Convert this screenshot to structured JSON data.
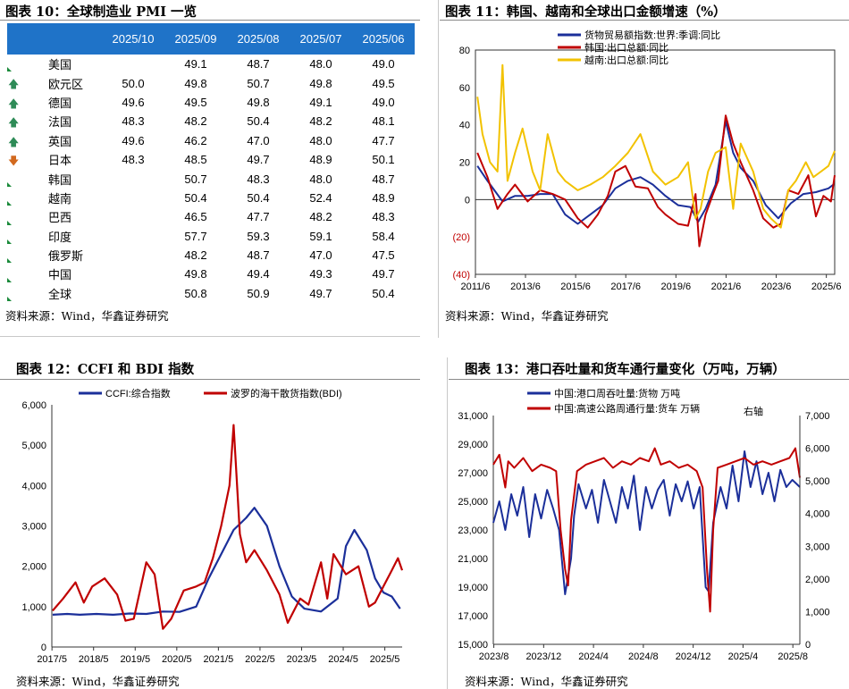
{
  "pmi": {
    "title": "图表 10：全球制造业 PMI 一览",
    "source": "资料来源：Wind，华鑫证券研究",
    "headers": [
      "2025/10",
      "2025/09",
      "2025/08",
      "2025/07",
      "2025/06"
    ],
    "rows": [
      {
        "icon": "flag",
        "name": "美国",
        "v": [
          "",
          "49.1",
          "48.7",
          "48.0",
          "49.0"
        ]
      },
      {
        "icon": "up",
        "name": "欧元区",
        "v": [
          "50.0",
          "49.8",
          "50.7",
          "49.8",
          "49.5"
        ]
      },
      {
        "icon": "up",
        "name": "德国",
        "v": [
          "49.6",
          "49.5",
          "49.8",
          "49.1",
          "49.0"
        ]
      },
      {
        "icon": "up",
        "name": "法国",
        "v": [
          "48.3",
          "48.2",
          "50.4",
          "48.2",
          "48.1"
        ]
      },
      {
        "icon": "up",
        "name": "英国",
        "v": [
          "49.6",
          "46.2",
          "47.0",
          "48.0",
          "47.7"
        ]
      },
      {
        "icon": "down",
        "name": "日本",
        "v": [
          "48.3",
          "48.5",
          "49.7",
          "48.9",
          "50.1"
        ]
      },
      {
        "icon": "flag",
        "name": "韩国",
        "v": [
          "",
          "50.7",
          "48.3",
          "48.0",
          "48.7"
        ]
      },
      {
        "icon": "flag",
        "name": "越南",
        "v": [
          "",
          "50.4",
          "50.4",
          "52.4",
          "48.9"
        ]
      },
      {
        "icon": "flag",
        "name": "巴西",
        "v": [
          "",
          "46.5",
          "47.7",
          "48.2",
          "48.3"
        ]
      },
      {
        "icon": "flag",
        "name": "印度",
        "v": [
          "",
          "57.7",
          "59.3",
          "59.1",
          "58.4"
        ]
      },
      {
        "icon": "flag",
        "name": "俄罗斯",
        "v": [
          "",
          "48.2",
          "48.7",
          "47.0",
          "47.5"
        ]
      },
      {
        "icon": "flag",
        "name": "中国",
        "v": [
          "",
          "49.8",
          "49.4",
          "49.3",
          "49.7"
        ]
      },
      {
        "icon": "flag",
        "name": "全球",
        "v": [
          "",
          "50.8",
          "50.9",
          "49.7",
          "50.4"
        ]
      }
    ],
    "colors": {
      "header_bg": "#1f73c8",
      "up": "#2e8b57",
      "down": "#d2691e",
      "flag": "#1a8a3a"
    }
  },
  "fig11": {
    "title": "图表 11：韩国、越南和全球出口金额增速（%）",
    "source": "资料来源：Wind，华鑫证券研究",
    "chart_data": {
      "type": "line",
      "ylim": [
        -40,
        80
      ],
      "yticks": [
        "80",
        "60",
        "40",
        "20",
        "0",
        "(20)",
        "(40)"
      ],
      "xticks": [
        "2011/6",
        "2013/6",
        "2015/6",
        "2017/6",
        "2019/6",
        "2021/6",
        "2023/6",
        "2025/6"
      ],
      "x_range": [
        2011.42,
        2025.75
      ],
      "series": [
        {
          "name": "货物贸易额指数:世界:季调:同比",
          "color": "#1b2f9a",
          "x": [
            2011.5,
            2011.9,
            2012.5,
            2013.0,
            2013.5,
            2014.0,
            2014.5,
            2015.0,
            2015.5,
            2016.0,
            2016.5,
            2017.0,
            2017.5,
            2018.0,
            2018.5,
            2019.0,
            2019.5,
            2020.0,
            2020.3,
            2020.6,
            2021.0,
            2021.4,
            2021.7,
            2022.0,
            2022.5,
            2023.0,
            2023.5,
            2024.0,
            2024.5,
            2025.0,
            2025.5,
            2025.7
          ],
          "y": [
            18,
            10,
            -1,
            2,
            2,
            3,
            3,
            -8,
            -13,
            -8,
            -3,
            6,
            10,
            12,
            8,
            2,
            -3,
            -4,
            -12,
            -5,
            8,
            42,
            25,
            17,
            10,
            -3,
            -10,
            -2,
            3,
            4,
            6,
            8
          ]
        },
        {
          "name": "韩国:出口总额:同比",
          "color": "#c00000",
          "x": [
            2011.5,
            2011.9,
            2012.3,
            2012.7,
            2013.0,
            2013.5,
            2014.0,
            2014.5,
            2015.0,
            2015.5,
            2015.9,
            2016.3,
            2016.7,
            2017.0,
            2017.4,
            2017.8,
            2018.3,
            2018.7,
            2019.0,
            2019.5,
            2019.9,
            2020.2,
            2020.35,
            2020.6,
            2020.9,
            2021.1,
            2021.4,
            2021.7,
            2022.0,
            2022.5,
            2022.9,
            2023.3,
            2023.6,
            2023.9,
            2024.3,
            2024.7,
            2025.0,
            2025.3,
            2025.6,
            2025.75
          ],
          "y": [
            25,
            12,
            -5,
            3,
            8,
            -1,
            5,
            3,
            0,
            -10,
            -15,
            -8,
            2,
            15,
            18,
            7,
            6,
            -4,
            -8,
            -13,
            -14,
            3,
            -25,
            -8,
            3,
            10,
            45,
            30,
            20,
            5,
            -10,
            -15,
            -13,
            5,
            3,
            13,
            -9,
            2,
            -1,
            13
          ]
        },
        {
          "name": "越南:出口总额:同比",
          "color": "#f2c200",
          "x": [
            2011.5,
            2011.7,
            2012.0,
            2012.3,
            2012.5,
            2012.7,
            2013.0,
            2013.3,
            2013.7,
            2014.0,
            2014.3,
            2014.7,
            2015.0,
            2015.5,
            2016.0,
            2016.5,
            2017.0,
            2017.5,
            2018.0,
            2018.5,
            2019.0,
            2019.5,
            2019.9,
            2020.2,
            2020.4,
            2020.7,
            2021.0,
            2021.4,
            2021.7,
            2022.0,
            2022.5,
            2022.9,
            2023.2,
            2023.6,
            2023.9,
            2024.2,
            2024.6,
            2024.9,
            2025.2,
            2025.5,
            2025.75
          ],
          "y": [
            55,
            35,
            20,
            15,
            72,
            10,
            25,
            38,
            15,
            5,
            35,
            15,
            10,
            5,
            8,
            12,
            18,
            25,
            35,
            15,
            8,
            12,
            20,
            -10,
            -5,
            15,
            25,
            28,
            -5,
            30,
            15,
            -5,
            -10,
            -15,
            5,
            10,
            20,
            12,
            15,
            18,
            26
          ]
        }
      ]
    }
  },
  "fig12": {
    "title": "图表 12：CCFI 和 BDI 指数",
    "source": "资料来源：Wind，华鑫证券研究",
    "chart_data": {
      "type": "line",
      "ylim": [
        0,
        6000
      ],
      "yticks": [
        "6,000",
        "5,000",
        "4,000",
        "3,000",
        "2,000",
        "1,000",
        "0"
      ],
      "xticks": [
        "2017/5",
        "2018/5",
        "2019/5",
        "2020/5",
        "2021/5",
        "2022/5",
        "2023/5",
        "2024/5",
        "2025/5"
      ],
      "x_range": [
        2017.33,
        2025.75
      ],
      "series": [
        {
          "name": "CCFI:综合指数",
          "color": "#1b2f9a",
          "x": [
            2017.35,
            2017.7,
            2018.0,
            2018.4,
            2018.8,
            2019.2,
            2019.6,
            2020.0,
            2020.4,
            2020.8,
            2021.1,
            2021.4,
            2021.7,
            2022.0,
            2022.2,
            2022.5,
            2022.8,
            2023.1,
            2023.4,
            2023.8,
            2024.2,
            2024.4,
            2024.6,
            2024.9,
            2025.1,
            2025.3,
            2025.5,
            2025.7
          ],
          "y": [
            800,
            820,
            800,
            820,
            800,
            830,
            820,
            880,
            870,
            1000,
            1700,
            2300,
            2900,
            3200,
            3450,
            3000,
            2000,
            1250,
            950,
            880,
            1200,
            2500,
            2900,
            2400,
            1700,
            1350,
            1250,
            950
          ]
        },
        {
          "name": "波罗的海干散货指数(BDI)",
          "color": "#c00000",
          "x": [
            2017.35,
            2017.6,
            2017.9,
            2018.1,
            2018.3,
            2018.6,
            2018.9,
            2019.1,
            2019.3,
            2019.6,
            2019.8,
            2020.0,
            2020.2,
            2020.5,
            2020.8,
            2021.0,
            2021.2,
            2021.4,
            2021.6,
            2021.7,
            2021.85,
            2022.0,
            2022.2,
            2022.5,
            2022.8,
            2023.0,
            2023.3,
            2023.5,
            2023.8,
            2023.95,
            2024.1,
            2024.4,
            2024.7,
            2024.95,
            2025.1,
            2025.3,
            2025.5,
            2025.65,
            2025.75
          ],
          "y": [
            900,
            1200,
            1600,
            1100,
            1500,
            1700,
            1300,
            650,
            700,
            2100,
            1800,
            450,
            700,
            1400,
            1500,
            1600,
            2200,
            3000,
            4000,
            5500,
            2800,
            2100,
            2400,
            1900,
            1300,
            600,
            1200,
            1050,
            2100,
            1200,
            2300,
            1800,
            2000,
            1000,
            1100,
            1500,
            1900,
            2200,
            1900
          ]
        }
      ]
    }
  },
  "fig13": {
    "title": "图表 13：港口吞吐量和货车通行量变化（万吨，万辆）",
    "source": "资料来源：Wind，华鑫证券研究",
    "right_axis_label": "右轴",
    "chart_data": {
      "type": "line",
      "ylim_left": [
        15000,
        31000
      ],
      "ylim_right": [
        0,
        7000
      ],
      "yticks_left": [
        "31,000",
        "29,000",
        "27,000",
        "25,000",
        "23,000",
        "21,000",
        "19,000",
        "17,000",
        "15,000"
      ],
      "yticks_right": [
        "7,000",
        "6,000",
        "5,000",
        "4,000",
        "3,000",
        "2,000",
        "1,000",
        "0"
      ],
      "xticks": [
        "2023/8",
        "2023/12",
        "2024/4",
        "2024/8",
        "2024/12",
        "2025/4",
        "2025/8"
      ],
      "x_range": [
        2023.58,
        2025.63
      ],
      "series": [
        {
          "name": "中国:港口周吞吐量:货物 万吨",
          "color": "#1b2f9a",
          "axis": "left",
          "x": [
            2023.58,
            2023.62,
            2023.66,
            2023.7,
            2023.74,
            2023.78,
            2023.82,
            2023.86,
            2023.9,
            2023.94,
            2023.98,
            2024.02,
            2024.06,
            2024.1,
            2024.12,
            2024.15,
            2024.2,
            2024.24,
            2024.28,
            2024.32,
            2024.36,
            2024.4,
            2024.44,
            2024.48,
            2024.52,
            2024.56,
            2024.6,
            2024.64,
            2024.68,
            2024.72,
            2024.76,
            2024.8,
            2024.84,
            2024.88,
            2024.92,
            2024.96,
            2025.0,
            2025.02,
            2025.05,
            2025.1,
            2025.14,
            2025.18,
            2025.22,
            2025.26,
            2025.3,
            2025.34,
            2025.38,
            2025.42,
            2025.46,
            2025.5,
            2025.54,
            2025.58,
            2025.63
          ],
          "y": [
            23500,
            25000,
            23000,
            25500,
            24000,
            26000,
            22500,
            25500,
            23800,
            25800,
            24500,
            23000,
            18500,
            21000,
            24000,
            26200,
            24500,
            25800,
            23500,
            26500,
            25000,
            23500,
            26000,
            24500,
            26800,
            23000,
            26000,
            24500,
            25800,
            26500,
            24000,
            26200,
            25000,
            26400,
            24500,
            26000,
            19000,
            18700,
            23500,
            26000,
            24500,
            27500,
            25000,
            28500,
            26000,
            27800,
            25500,
            27000,
            25000,
            27200,
            26000,
            26500,
            26000
          ]
        },
        {
          "name": "中国:高速公路周通行量:货车 万辆",
          "color": "#c00000",
          "axis": "right",
          "x": [
            2023.58,
            2023.62,
            2023.66,
            2023.68,
            2023.72,
            2023.78,
            2023.84,
            2023.9,
            2023.96,
            2024.0,
            2024.03,
            2024.06,
            2024.08,
            2024.1,
            2024.14,
            2024.2,
            2024.26,
            2024.32,
            2024.38,
            2024.44,
            2024.5,
            2024.56,
            2024.62,
            2024.66,
            2024.7,
            2024.76,
            2024.82,
            2024.88,
            2024.94,
            2024.98,
            2025.01,
            2025.03,
            2025.05,
            2025.08,
            2025.14,
            2025.2,
            2025.26,
            2025.32,
            2025.38,
            2025.44,
            2025.5,
            2025.56,
            2025.6,
            2025.63
          ],
          "y": [
            5500,
            5800,
            4800,
            5600,
            5400,
            5700,
            5300,
            5500,
            5400,
            5300,
            3500,
            2300,
            1800,
            3800,
            5300,
            5500,
            5600,
            5700,
            5400,
            5600,
            5500,
            5700,
            5600,
            6000,
            5500,
            5600,
            5400,
            5500,
            5300,
            4800,
            2200,
            1000,
            3500,
            5400,
            5500,
            5600,
            5700,
            5500,
            5600,
            5500,
            5600,
            5700,
            6000,
            5100
          ]
        }
      ]
    }
  }
}
